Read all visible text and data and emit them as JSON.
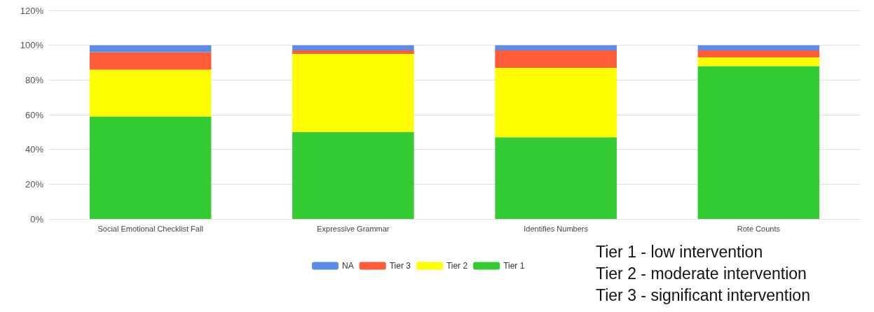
{
  "chart_data": {
    "type": "bar",
    "stacked": true,
    "categories": [
      "Social Emotional Checklist Fall",
      "Expressive Grammar",
      "Identifies Numbers",
      "Rote Counts"
    ],
    "series": [
      {
        "name": "Tier 1",
        "color": "#33cc33",
        "values": [
          59,
          50,
          47,
          88
        ]
      },
      {
        "name": "Tier 2",
        "color": "#ffff00",
        "values": [
          27,
          45,
          40,
          5
        ]
      },
      {
        "name": "Tier 3",
        "color": "#ff5c3a",
        "values": [
          10,
          2,
          10,
          4
        ]
      },
      {
        "name": "NA",
        "color": "#5b8de8",
        "values": [
          4,
          3,
          3,
          3
        ]
      }
    ],
    "ylim": [
      0,
      120
    ],
    "yticks": [
      {
        "value": 0,
        "label": "0%"
      },
      {
        "value": 20,
        "label": "20%"
      },
      {
        "value": 40,
        "label": "40%"
      },
      {
        "value": 60,
        "label": "60%"
      },
      {
        "value": 80,
        "label": "80%"
      },
      {
        "value": 100,
        "label": "100%"
      },
      {
        "value": 120,
        "label": "120%"
      }
    ],
    "grid": "y",
    "legend": "bottom",
    "annotations": [
      "Tier 1 - low intervention",
      "Tier 2 - moderate intervention",
      "Tier 3 - significant intervention"
    ]
  }
}
